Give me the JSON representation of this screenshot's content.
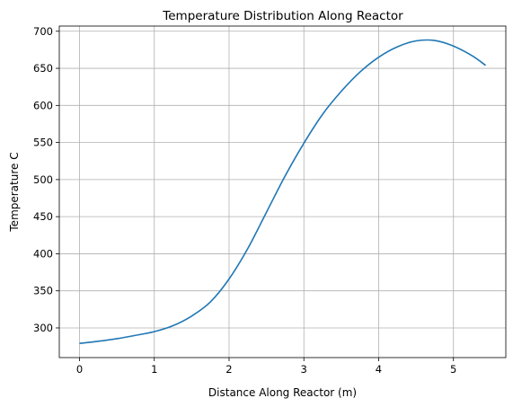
{
  "chart_data": {
    "type": "line",
    "title": "Temperature Distribution Along Reactor",
    "xlabel": "Distance Along Reactor (m)",
    "ylabel": "Temperature C",
    "xlim": [
      -0.27,
      5.7
    ],
    "ylim": [
      260,
      707
    ],
    "xticks": [
      0,
      1,
      2,
      3,
      4,
      5
    ],
    "yticks": [
      300,
      350,
      400,
      450,
      500,
      550,
      600,
      650,
      700
    ],
    "grid": true,
    "series": [
      {
        "color": "#1f77b4",
        "x": [
          0,
          0.25,
          0.5,
          0.75,
          1.0,
          1.25,
          1.5,
          1.75,
          2.0,
          2.25,
          2.5,
          2.75,
          3.0,
          3.25,
          3.5,
          3.75,
          4.0,
          4.25,
          4.5,
          4.75,
          5.0,
          5.25,
          5.43
        ],
        "y": [
          279,
          282,
          285.5,
          290,
          295,
          303,
          316,
          335,
          366,
          407,
          456,
          505,
          549,
          588,
          619,
          645,
          665,
          679,
          687,
          687.5,
          680,
          667,
          654
        ]
      }
    ]
  }
}
